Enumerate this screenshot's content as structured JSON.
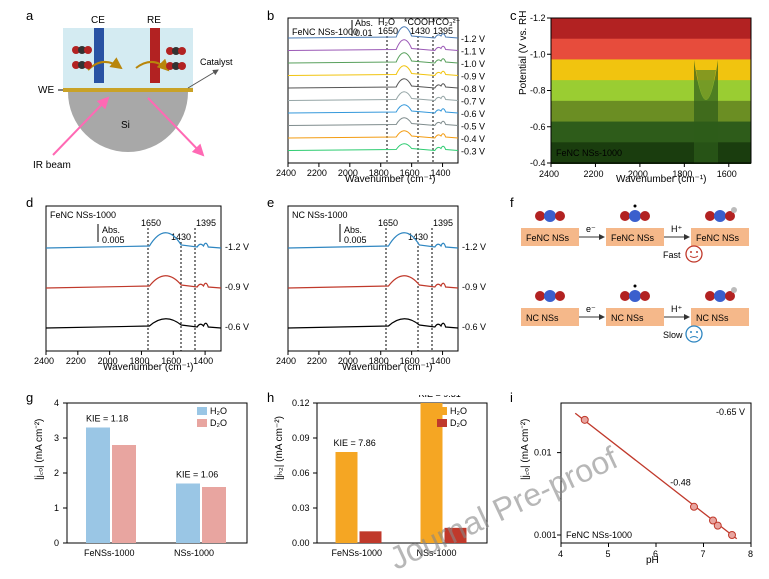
{
  "panels": {
    "a": {
      "label": "a",
      "ce_label": "CE",
      "ce_color": "#2952a3",
      "re_label": "RE",
      "re_color": "#b22222",
      "we_label": "WE",
      "catalyst_label": "Catalyst",
      "si_label": "Si",
      "ir_label": "IR beam",
      "ir_color": "#ff69b4",
      "water_color": "#d4ebf2",
      "si_color": "#a8a8a8",
      "gold_color": "#c9a227",
      "atom_red": "#b22222",
      "atom_dark": "#333333"
    },
    "b": {
      "label": "b",
      "title": "FeNC NSs-1000",
      "abs_label": "Abs.",
      "abs_value": "0.01",
      "peak_1650": "1650",
      "peak_1430": "1430",
      "peak_1395": "1395",
      "h2o_label": "H₂O",
      "h2o_color": "#c0392b",
      "cooh_label": "*COOH",
      "co3_label": "*CO₃²⁻",
      "xlabel": "Wavenumber (cm⁻¹)",
      "xlim": [
        2400,
        1300
      ],
      "xticks": [
        2400,
        2200,
        2000,
        1800,
        1600,
        1400
      ],
      "voltages": [
        "-1.2 V",
        "-1.1 V",
        "-1.0 V",
        "-0.9 V",
        "-0.8 V",
        "-0.7 V",
        "-0.6 V",
        "-0.5 V",
        "-0.4 V",
        "-0.3 V"
      ],
      "line_colors": [
        "#4a7bb5",
        "#9b59b6",
        "#58a05c",
        "#f1c40f",
        "#555555",
        "#95a5a6",
        "#3498db",
        "#7f8c8d",
        "#f39c12",
        "#2ecc71"
      ]
    },
    "c": {
      "label": "c",
      "title": "FeNC NSs-1000",
      "xlabel": "Wavenumber (cm⁻¹)",
      "ylabel": "Potential (V vs. RHE)",
      "xlim": [
        2400,
        1500
      ],
      "xticks": [
        2400,
        2200,
        2000,
        1800,
        1600
      ],
      "ylim": [
        -0.4,
        -1.2
      ],
      "yticks": [
        -0.4,
        -0.6,
        -0.8,
        -1.0,
        -1.2
      ],
      "colors": [
        "#b22222",
        "#e74c3c",
        "#f1c40f",
        "#9acd32",
        "#6b8e23",
        "#2e5c1a",
        "#1a3d0e"
      ]
    },
    "d": {
      "label": "d",
      "title": "FeNC NSs-1000",
      "abs_label": "Abs.",
      "abs_value": "0.005",
      "peak_1650": "1650",
      "peak_1430": "1430",
      "peak_1395": "1395",
      "xlabel": "Wavenumber (cm⁻¹)",
      "xticks": [
        2400,
        2200,
        2000,
        1800,
        1600,
        1400
      ],
      "voltages": [
        "-1.2 V",
        "-0.9 V",
        "-0.6 V"
      ],
      "line_colors": [
        "#2e86c1",
        "#c0392b",
        "#000000"
      ]
    },
    "e": {
      "label": "e",
      "title": "NC NSs-1000",
      "abs_label": "Abs.",
      "abs_value": "0.005",
      "peak_1650": "1650",
      "peak_1430": "1430",
      "peak_1395": "1395",
      "xlabel": "Wavenumber (cm⁻¹)",
      "xticks": [
        2400,
        2200,
        2000,
        1800,
        1600,
        1400
      ],
      "voltages": [
        "-1.2 V",
        "-0.9 V",
        "-0.6 V"
      ],
      "line_colors": [
        "#2e86c1",
        "#c0392b",
        "#000000"
      ]
    },
    "f": {
      "label": "f",
      "box_color": "#f5b88a",
      "fenc_label": "FeNC NSs",
      "fenc_color": "#2e86c1",
      "nc_label": "NC NSs",
      "nc_color": "#c0392b",
      "arrow_e": "e⁻",
      "arrow_h": "H⁺",
      "fast_label": "Fast",
      "fast_color": "#c0392b",
      "slow_label": "Slow",
      "slow_color": "#2e86c1",
      "atom_blue": "#3a5fcd",
      "atom_red": "#b22222",
      "atom_grey": "#bbbbbb"
    },
    "g": {
      "label": "g",
      "ylabel": "|j꜀ₒ| (mA cm⁻²)",
      "categories": [
        "FeNSs-1000",
        "NSs-1000"
      ],
      "legend": [
        "H₂O",
        "D₂O"
      ],
      "legend_colors": [
        "#9ac6e5",
        "#e8a5a0"
      ],
      "kie_labels": [
        "KIE = 1.18",
        "KIE = 1.06"
      ],
      "values": [
        [
          3.3,
          2.8
        ],
        [
          1.7,
          1.6
        ]
      ],
      "ylim": [
        0,
        4
      ],
      "yticks": [
        0,
        1,
        2,
        3,
        4
      ]
    },
    "h": {
      "label": "h",
      "ylabel": "|jₕ₂| (mA cm⁻²)",
      "categories": [
        "FeNSs-1000",
        "NSs-1000"
      ],
      "legend": [
        "H₂O",
        "D₂O"
      ],
      "legend_colors": [
        "#f5a623",
        "#c0392b"
      ],
      "kie_labels": [
        "KIE = 7.86",
        "KIE = 9.31"
      ],
      "values": [
        [
          0.078,
          0.01
        ],
        [
          0.12,
          0.013
        ]
      ],
      "ylim": [
        0,
        0.12
      ],
      "yticks": [
        0.0,
        0.03,
        0.06,
        0.09,
        0.12
      ]
    },
    "i": {
      "label": "i",
      "ylabel": "|j꜀ₒ| (mA cm⁻²)",
      "xlabel": "pH",
      "title_corner": "-0.65 V",
      "sample_label": "FeNC NSs-1000",
      "slope_label": "-0.48",
      "slope_color": "#c0392b",
      "xlim": [
        4,
        8
      ],
      "xticks": [
        4,
        5,
        6,
        7,
        8
      ],
      "yscale": "log",
      "yticks_labels": [
        "0.001",
        "0.01"
      ],
      "yticks_vals": [
        0.001,
        0.01
      ],
      "points_x": [
        4.5,
        6.8,
        7.2,
        7.3,
        7.6
      ],
      "points_y": [
        0.025,
        0.0022,
        0.0015,
        0.0013,
        0.001
      ],
      "marker_color": "#e8a5a0",
      "line_color": "#c0392b"
    }
  },
  "watermark": "Journal Pre-proof",
  "watermark_color": "#888888"
}
